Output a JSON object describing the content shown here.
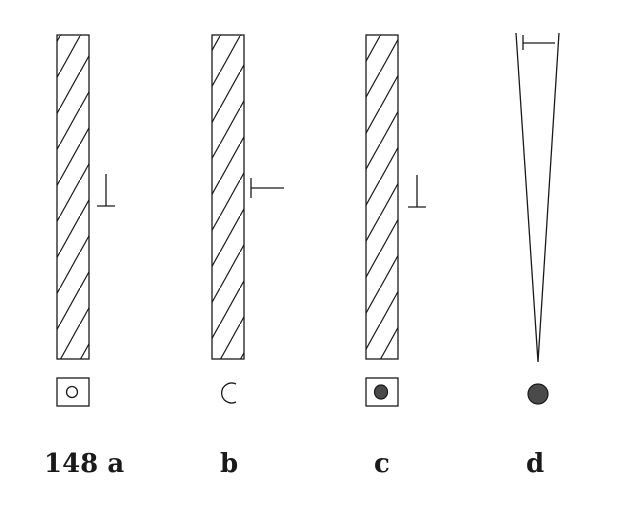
{
  "figure": {
    "captions": {
      "a": "148 a",
      "b": "b",
      "c": "c",
      "d": "d"
    },
    "colors": {
      "ink": "#1a1a1a",
      "dot_fill": "#4a4a4a",
      "background": "#ffffff"
    }
  }
}
